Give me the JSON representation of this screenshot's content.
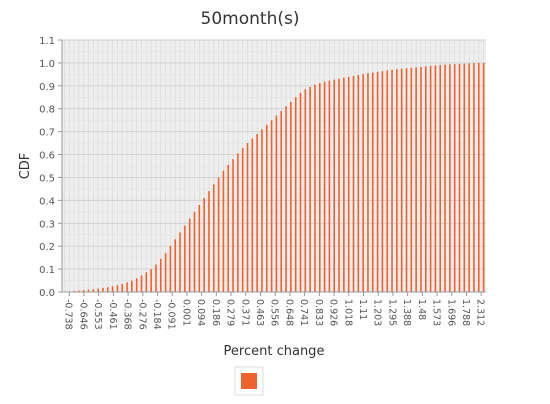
{
  "chart_data": {
    "type": "bar",
    "title": "50month(s)",
    "xlabel": "Percent change",
    "ylabel": "CDF",
    "ylim": [
      0,
      1.1
    ],
    "yticks": [
      "0.0",
      "0.1",
      "0.2",
      "0.3",
      "0.4",
      "0.5",
      "0.6",
      "0.7",
      "0.8",
      "0.9",
      "1.0",
      "1.1"
    ],
    "xtick_labels": [
      "-0.738",
      "-0.646",
      "-0.553",
      "-0.461",
      "-0.368",
      "-0.276",
      "-0.184",
      "-0.091",
      "0.001",
      "0.094",
      "0.186",
      "0.279",
      "0.371",
      "0.463",
      "0.556",
      "0.648",
      "0.741",
      "0.833",
      "0.926",
      "1.018",
      "1.11",
      "1.203",
      "1.295",
      "1.388",
      "1.48",
      "1.573",
      "1.696",
      "1.788",
      "2.312"
    ],
    "grid": true,
    "legend": "bottom-center",
    "series": [
      {
        "color": "#f0622d",
        "values": [
          0.0,
          0.002,
          0.004,
          0.006,
          0.008,
          0.01,
          0.012,
          0.015,
          0.018,
          0.021,
          0.025,
          0.03,
          0.035,
          0.042,
          0.05,
          0.06,
          0.072,
          0.086,
          0.1,
          0.12,
          0.145,
          0.17,
          0.2,
          0.23,
          0.26,
          0.29,
          0.32,
          0.35,
          0.38,
          0.41,
          0.44,
          0.47,
          0.5,
          0.53,
          0.555,
          0.58,
          0.605,
          0.628,
          0.65,
          0.67,
          0.69,
          0.71,
          0.73,
          0.75,
          0.77,
          0.79,
          0.81,
          0.83,
          0.85,
          0.87,
          0.885,
          0.895,
          0.905,
          0.912,
          0.918,
          0.923,
          0.927,
          0.931,
          0.935,
          0.939,
          0.943,
          0.947,
          0.951,
          0.955,
          0.958,
          0.961,
          0.964,
          0.967,
          0.97,
          0.973,
          0.975,
          0.977,
          0.979,
          0.981,
          0.983,
          0.985,
          0.987,
          0.989,
          0.991,
          0.993,
          0.994,
          0.995,
          0.996,
          0.997,
          0.998,
          0.999,
          1.0,
          1.0
        ]
      }
    ]
  }
}
